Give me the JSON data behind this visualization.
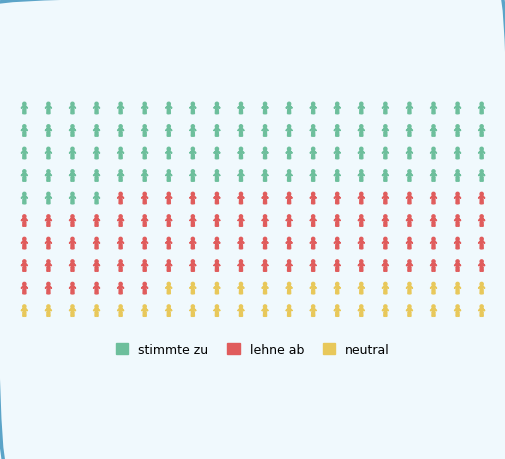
{
  "cols": 20,
  "rows": 10,
  "green_count": 84,
  "red_count": 82,
  "yellow_count": 34,
  "green_color": "#6dbf9c",
  "red_color": "#e05c5c",
  "yellow_color": "#e8c85a",
  "background_color": "#f0f9fd",
  "border_color": "#5ba4c8",
  "legend_labels": [
    "stimmte zu",
    "lehne ab",
    "neutral"
  ],
  "figsize": [
    5.06,
    4.6
  ],
  "dpi": 100
}
